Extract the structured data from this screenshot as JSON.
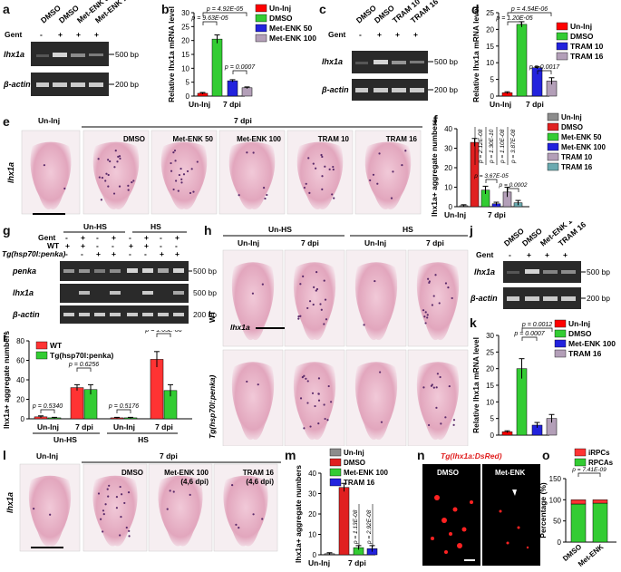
{
  "panel_labels": {
    "a": "a",
    "b": "b",
    "c": "c",
    "d": "d",
    "e": "e",
    "f": "f",
    "g": "g",
    "h": "h",
    "i": "i",
    "j": "j",
    "k": "k",
    "l": "l",
    "m": "m",
    "n": "n",
    "o": "o"
  },
  "gel_a": {
    "cols": [
      "DMSO",
      "DMSO",
      "Met-ENK 50",
      "Met-ENK 100"
    ],
    "gent_label": "Gent",
    "gent": [
      "-",
      "+",
      "+",
      "+"
    ],
    "rows": [
      "lhx1a",
      "β-actin"
    ],
    "sizes": [
      "500 bp",
      "200 bp"
    ]
  },
  "gel_c": {
    "cols": [
      "DMSO",
      "DMSO",
      "TRAM 10",
      "TRAM 16"
    ],
    "gent_label": "Gent",
    "gent": [
      "-",
      "+",
      "+",
      "+"
    ],
    "rows": [
      "lhx1a",
      "β-actin"
    ],
    "sizes": [
      "500 bp",
      "200 bp"
    ]
  },
  "gel_g": {
    "groups": [
      "Un-HS",
      "HS"
    ],
    "gent_label": "Gent",
    "wt_label": "WT",
    "tg_label": "Tg(hsp70l:penka)",
    "gent": [
      "-",
      "+",
      "-",
      "+",
      "-",
      "+",
      "-",
      "+"
    ],
    "wt": [
      "+",
      "+",
      "-",
      "-",
      "+",
      "+",
      "-",
      "-"
    ],
    "tg": [
      "-",
      "-",
      "+",
      "+",
      "-",
      "-",
      "+",
      "+"
    ],
    "rows": [
      "penka",
      "lhx1a",
      "β-actin"
    ],
    "sizes": [
      "500 bp",
      "500 bp",
      "200 bp"
    ]
  },
  "gel_j": {
    "cols": [
      "DMSO",
      "DMSO",
      "Met-ENK 100",
      "TRAM 16"
    ],
    "gent_label": "Gent",
    "gent": [
      "-",
      "+",
      "+",
      "+"
    ],
    "rows": [
      "lhx1a",
      "β-actin"
    ],
    "sizes": [
      "500 bp",
      "200 bp"
    ]
  },
  "img_e": {
    "ylabel": "lhx1a",
    "un_inj": "Un-Inj",
    "dpi": "7 dpi",
    "labels": [
      "DMSO",
      "Met-ENK 50",
      "Met-ENK 100",
      "TRAM 10",
      "TRAM 16"
    ]
  },
  "img_h": {
    "groups": [
      "Un-HS",
      "HS"
    ],
    "cols": [
      "Un-Inj",
      "7 dpi",
      "Un-Inj",
      "7 dpi"
    ],
    "rows": [
      "WT",
      "Tg(hsp70l:penka)"
    ],
    "inset": "lhx1a"
  },
  "img_l": {
    "ylabel": "lhx1a",
    "un_inj": "Un-Inj",
    "dpi": "7 dpi",
    "labels": [
      "DMSO",
      "Met-ENK 100",
      "TRAM 16"
    ],
    "sublabels": [
      "",
      "(4,6 dpi)",
      "(4,6 dpi)"
    ]
  },
  "img_n": {
    "title": "Tg(lhx1a:DsRed)",
    "labels": [
      "DMSO",
      "Met-ENK"
    ]
  },
  "colors": {
    "uninj": "#ff0000",
    "dmso": "#33cc33",
    "metenk50": "#2222dd",
    "metenk100": "#b39fb8",
    "tram10": "#2222dd",
    "tram16": "#b39fb8",
    "f_uninj": "#8c8c8c",
    "f_dmso": "#e02020",
    "f_met50": "#33cc33",
    "f_met100": "#2222dd",
    "f_tram10": "#b39fb8",
    "f_tram16": "#6aaab0",
    "wt": "#ff3333",
    "tg": "#33cc33",
    "irpc": "#ff3333",
    "rpca": "#33cc33"
  },
  "chart_data": [
    {
      "id": "b",
      "type": "bar",
      "ylabel": "Relative lhx1a mRNA level",
      "ylim": [
        0,
        30
      ],
      "yticks": [
        0,
        5,
        10,
        15,
        20,
        25,
        30
      ],
      "groups": [
        "Un-Inj",
        "7 dpi"
      ],
      "series": [
        {
          "name": "Un-Inj",
          "value": 1.0,
          "err": 0.3
        },
        {
          "name": "DMSO",
          "value": 20.5,
          "err": 1.5
        },
        {
          "name": "Met-ENK 50",
          "value": 5.5,
          "err": 0.4
        },
        {
          "name": "Met-ENK 100",
          "value": 3.0,
          "err": 0.3
        }
      ],
      "pvalues": [
        "p = 4.92E-05",
        "p = 9.63E-05",
        "p = 0.0007"
      ]
    },
    {
      "id": "d",
      "type": "bar",
      "ylabel": "Relative lhx1a mRNA level",
      "ylim": [
        0,
        25
      ],
      "yticks": [
        0,
        5,
        10,
        15,
        20,
        25
      ],
      "groups": [
        "Un-Inj",
        "7 dpi"
      ],
      "series": [
        {
          "name": "Un-Inj",
          "value": 1.0,
          "err": 0.3
        },
        {
          "name": "DMSO",
          "value": 21.5,
          "err": 0.8
        },
        {
          "name": "TRAM 10",
          "value": 8.5,
          "err": 0.3
        },
        {
          "name": "TRAM 16",
          "value": 4.5,
          "err": 1.0
        }
      ],
      "pvalues": [
        "p = 4.54E-06",
        "p = 1.20E-05",
        "p = 0.0017"
      ]
    },
    {
      "id": "f",
      "type": "bar",
      "ylabel": "lhx1a+ aggregate numbers",
      "ylim": [
        0,
        40
      ],
      "yticks": [
        0,
        10,
        20,
        30,
        40
      ],
      "groups": [
        "Un-Inj",
        "7 dpi"
      ],
      "series": [
        {
          "name": "Un-Inj",
          "value": 0.5,
          "err": 0.5
        },
        {
          "name": "DMSO",
          "value": 33,
          "err": 2
        },
        {
          "name": "Met-ENK 50",
          "value": 8.5,
          "err": 2
        },
        {
          "name": "Met-ENK 100",
          "value": 1.5,
          "err": 0.8
        },
        {
          "name": "TRAM 10",
          "value": 7.5,
          "err": 2.5
        },
        {
          "name": "TRAM 16",
          "value": 2,
          "err": 1.2
        }
      ],
      "pvalues": [
        "p = 2.12E-08",
        "p = 1.30E-10",
        "p = 1.10E-08",
        "p = 3.87E-08",
        "p = 3.67E-05",
        "p = 0.0002"
      ]
    },
    {
      "id": "i",
      "type": "bar",
      "ylabel": "lhx1a+ aggregate numbers",
      "ylim": [
        0,
        80
      ],
      "yticks": [
        0,
        20,
        40,
        60,
        80
      ],
      "categories": [
        "Un-Inj",
        "7 dpi",
        "Un-Inj",
        "7 dpi"
      ],
      "group_labels": [
        "Un-HS",
        "HS"
      ],
      "series": [
        {
          "name": "WT",
          "values": [
            2,
            32,
            1,
            61
          ],
          "errs": [
            1,
            3,
            0.5,
            8
          ]
        },
        {
          "name": "Tg(hsp70l:penka)",
          "values": [
            1,
            30,
            1,
            29
          ],
          "errs": [
            0.5,
            5,
            0.5,
            6
          ]
        }
      ],
      "pvalues": [
        "p = 0.5340",
        "p = 0.6256",
        "p = 0.5176",
        "p = 1.65E-06"
      ]
    },
    {
      "id": "k",
      "type": "bar",
      "ylabel": "Relative lhx1a mRNA level",
      "ylim": [
        0,
        30
      ],
      "yticks": [
        0,
        5,
        10,
        15,
        20,
        25,
        30
      ],
      "groups": [
        "Un-Inj",
        "7 dpi"
      ],
      "series": [
        {
          "name": "Un-Inj",
          "value": 1.0,
          "err": 0.3
        },
        {
          "name": "DMSO",
          "value": 20,
          "err": 3
        },
        {
          "name": "Met-ENK 100",
          "value": 3,
          "err": 0.8
        },
        {
          "name": "TRAM 16",
          "value": 5,
          "err": 1.2
        }
      ],
      "pvalues": [
        "p = 0.0012",
        "p = 0.0007"
      ]
    },
    {
      "id": "m",
      "type": "bar",
      "ylabel": "lhx1a+ aggregate numbers",
      "ylim": [
        0,
        40
      ],
      "yticks": [
        0,
        10,
        20,
        30,
        40
      ],
      "groups": [
        "Un-Inj",
        "7 dpi"
      ],
      "series": [
        {
          "name": "Un-Inj",
          "value": 0.5,
          "err": 0.5
        },
        {
          "name": "DMSO",
          "value": 33,
          "err": 2
        },
        {
          "name": "Met-ENK 100",
          "value": 3.5,
          "err": 1
        },
        {
          "name": "TRAM 16",
          "value": 3,
          "err": 1.5
        }
      ],
      "pvalues": [
        "p = 1.13E-08",
        "p = 2.92E-08"
      ]
    },
    {
      "id": "o",
      "type": "bar",
      "ylabel": "Percentage (%)",
      "ylim": [
        0,
        150
      ],
      "yticks": [
        0,
        50,
        100,
        150
      ],
      "categories": [
        "DMSO",
        "Met-ENK"
      ],
      "series": [
        {
          "name": "iRPCs",
          "values": [
            10,
            8
          ]
        },
        {
          "name": "RPCAs",
          "values": [
            90,
            92
          ]
        }
      ],
      "pvalues": [
        "p = 7.41E-09"
      ]
    }
  ]
}
